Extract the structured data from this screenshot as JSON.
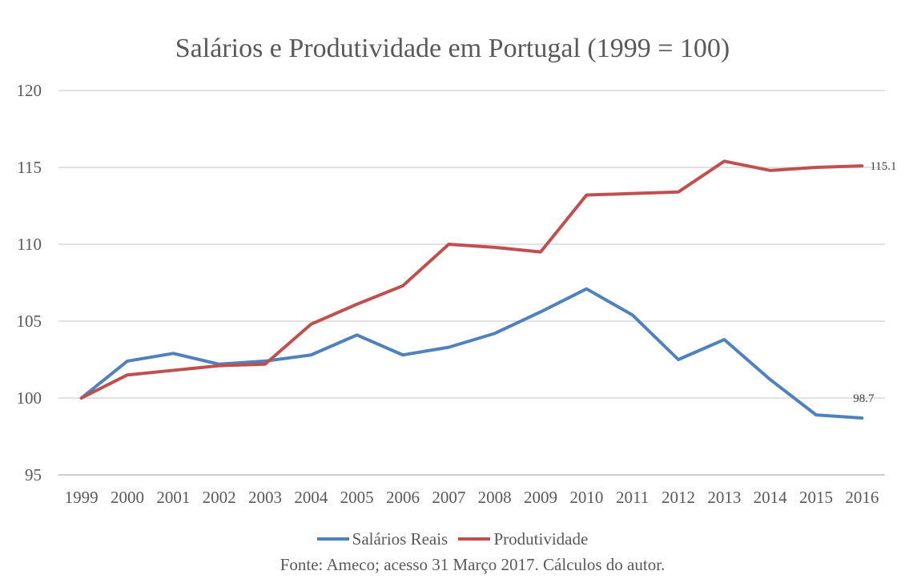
{
  "chart_data": {
    "type": "line",
    "title": "Salários e Produtividade em Portugal (1999  = 100)",
    "categories": [
      "1999",
      "2000",
      "2001",
      "2002",
      "2003",
      "2004",
      "2005",
      "2006",
      "2007",
      "2008",
      "2009",
      "2010",
      "2011",
      "2012",
      "2013",
      "2014",
      "2015",
      "2016"
    ],
    "ylim": [
      95,
      120
    ],
    "yticks": [
      95,
      100,
      105,
      110,
      115,
      120
    ],
    "grid": true,
    "legend_position": "bottom",
    "series": [
      {
        "name": "Salários Reais",
        "color": "#4f81bd",
        "values": [
          100,
          102.4,
          102.9,
          102.2,
          102.4,
          102.8,
          104.1,
          102.8,
          103.3,
          104.2,
          105.6,
          107.1,
          105.4,
          102.5,
          103.8,
          101.2,
          98.9,
          98.7
        ],
        "end_label": "98.7"
      },
      {
        "name": "Produtividade",
        "color": "#c0504d",
        "values": [
          100,
          101.5,
          101.8,
          102.1,
          102.2,
          104.8,
          106.1,
          107.3,
          110.0,
          109.8,
          109.5,
          113.2,
          113.3,
          113.4,
          115.4,
          114.8,
          115.0,
          115.1
        ],
        "end_label": "115.1"
      }
    ],
    "source": "Fonte: Ameco; acesso 31 Março 2017. Cálculos do autor."
  }
}
